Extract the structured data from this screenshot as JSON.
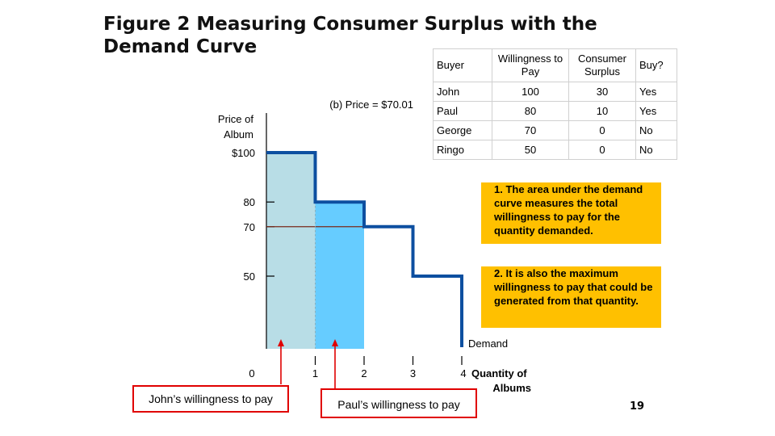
{
  "title_line1": "Figure 2 Measuring Consumer Surplus with the",
  "title_line2": "Demand Curve",
  "panel_label": "(b) Price = $70.01",
  "chart_data": {
    "type": "step",
    "y_axis_label_line1": "Price of",
    "y_axis_label_line2": "Album",
    "x_axis_label_line1": "Quantity of",
    "x_axis_label_line2": "Albums",
    "curve_label": "Demand",
    "y_ticks": [
      {
        "value": 100,
        "label": "$100"
      },
      {
        "value": 80,
        "label": "80"
      },
      {
        "value": 70,
        "label": "70"
      },
      {
        "value": 50,
        "label": "50"
      }
    ],
    "x_ticks": [
      {
        "value": 0,
        "label": "0"
      },
      {
        "value": 1,
        "label": "1"
      },
      {
        "value": 2,
        "label": "2"
      },
      {
        "value": 3,
        "label": "3"
      },
      {
        "value": 4,
        "label": "4"
      }
    ],
    "demand_steps": [
      {
        "x_start": 0,
        "x_end": 1,
        "price": 100
      },
      {
        "x_start": 1,
        "x_end": 2,
        "price": 80
      },
      {
        "x_start": 2,
        "x_end": 3,
        "price": 70
      },
      {
        "x_start": 3,
        "x_end": 4,
        "price": 50
      }
    ],
    "shaded_areas": [
      {
        "x_start": 0,
        "x_end": 1,
        "height": 100,
        "color": "#b8dde6"
      },
      {
        "x_start": 1,
        "x_end": 2,
        "height": 80,
        "color": "#66ccff"
      }
    ],
    "price_line": 70.01,
    "curve_color": "#0d4fa0",
    "price_line_color": "#7a2a1a",
    "arrow_color": "#e00000"
  },
  "table": {
    "headers": [
      "Buyer",
      "Willingness to Pay",
      "Consumer Surplus",
      "Buy?"
    ],
    "rows": [
      [
        "John",
        "100",
        "30",
        "Yes"
      ],
      [
        "Paul",
        "80",
        "10",
        "Yes"
      ],
      [
        "George",
        "70",
        "0",
        "No"
      ],
      [
        "Ringo",
        "50",
        "0",
        "No"
      ]
    ]
  },
  "note1": "1. The area under the demand curve measures the total willingness to pay for the quantity demanded.",
  "note2": "2. It is also the maximum willingness to pay that could be generated from that quantity.",
  "callout1": "John’s willingness to pay",
  "callout2": "Paul’s willingness to pay",
  "page_number": "19"
}
